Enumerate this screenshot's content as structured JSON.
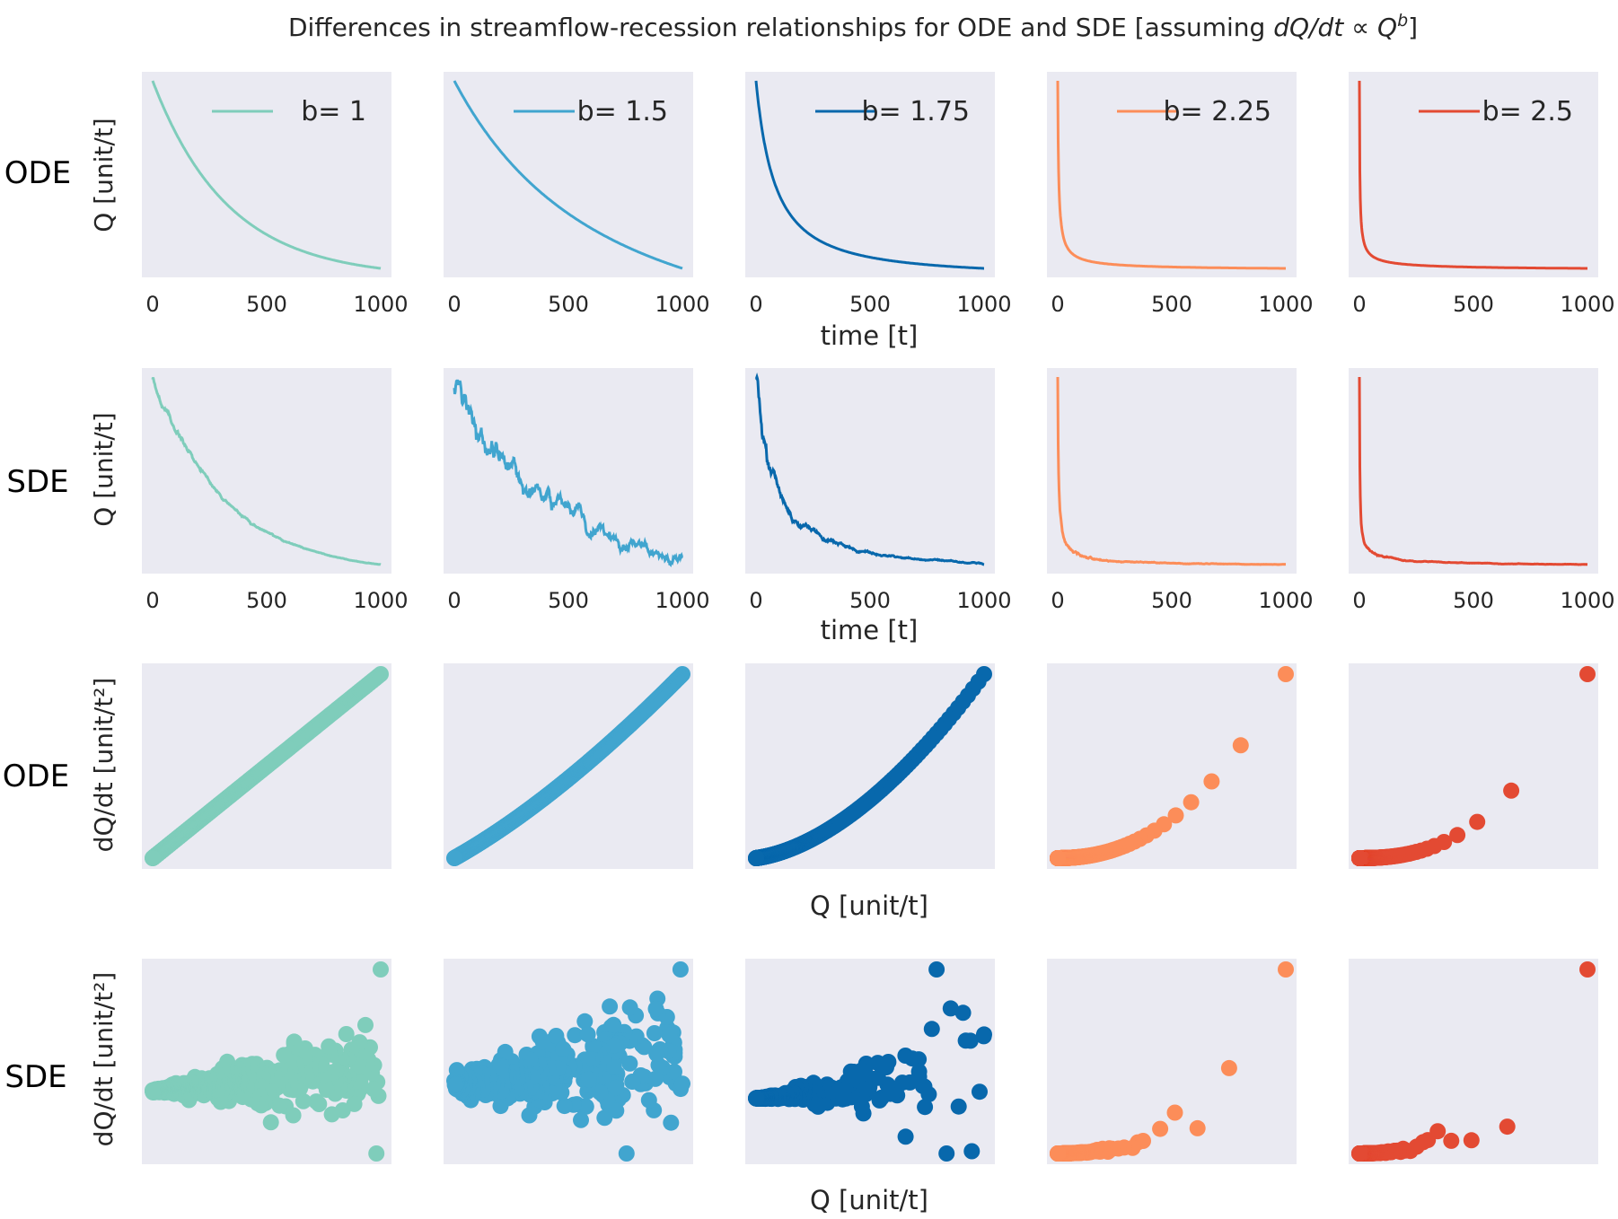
{
  "title_text": "Differences in streamflow-recession relationships for ODE and SDE [assuming ",
  "title_math": "dQ/dt ∝ Q",
  "title_sup": "b",
  "title_close": "]",
  "row_labels": [
    "ODE",
    "SDE",
    "ODE",
    "SDE"
  ],
  "ylabels": [
    "Q [unit/t]",
    "Q [unit/t]",
    "dQ/dt [unit/t²]",
    "dQ/dt [unit/t²]"
  ],
  "xlabels": [
    "time [t]",
    "time [t]",
    "Q [unit/t]",
    "Q [unit/t]"
  ],
  "colors": [
    "#7fcdbb",
    "#41a5cf",
    "#0868ac",
    "#fc8d59",
    "#e34a33"
  ],
  "chart_data": {
    "type": "line",
    "panel_background": "#eaeaf2",
    "grid": false,
    "legend_position": "upper-right",
    "b_values": [
      1,
      1.5,
      1.75,
      2.25,
      2.5
    ],
    "series": [
      {
        "name": "b= 1"
      },
      {
        "name": "b= 1.5"
      },
      {
        "name": "b= 1.75"
      },
      {
        "name": "b= 2.25"
      },
      {
        "name": "b= 2.5"
      }
    ],
    "time_axis": {
      "xlim": [
        0,
        1000
      ],
      "xticks": [
        0,
        500,
        1000
      ]
    },
    "rows": [
      {
        "label": "ODE",
        "type": "line",
        "x": "time",
        "y": "Q"
      },
      {
        "label": "SDE",
        "type": "line",
        "x": "time",
        "y": "Q"
      },
      {
        "label": "ODE",
        "type": "scatter",
        "x": "Q",
        "y": "dQ/dt"
      },
      {
        "label": "SDE",
        "type": "scatter",
        "x": "Q",
        "y": "dQ/dt"
      }
    ]
  }
}
